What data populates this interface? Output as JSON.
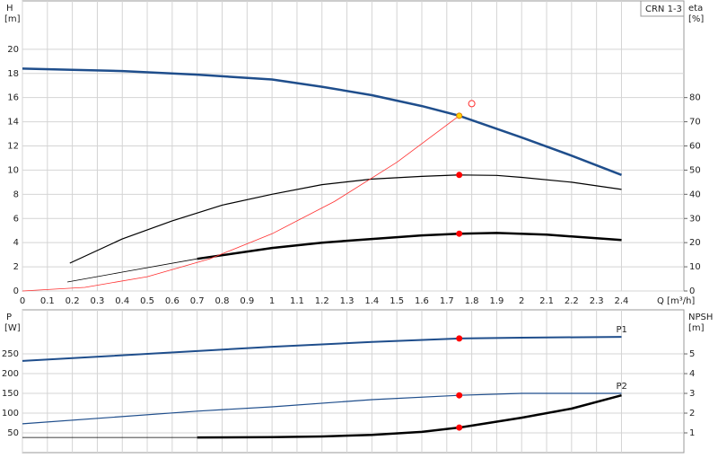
{
  "chart_data": [
    {
      "type": "line",
      "title": "CRN 1-3",
      "ylabel": "H",
      "ylabel_unit": "[m]",
      "y2label": "eta",
      "y2label_unit": "[%]",
      "xlabel": "Q [m³/h]",
      "xlim": [
        0,
        2.65
      ],
      "xticks": [
        0,
        0.1,
        0.2,
        0.3,
        0.4,
        0.5,
        0.6,
        0.7,
        0.8,
        0.9,
        1,
        1.1,
        1.2,
        1.3,
        1.4,
        1.5,
        1.6,
        1.7,
        1.8,
        1.9,
        2,
        2.1,
        2.2,
        2.3,
        2.4
      ],
      "ylim": [
        0,
        24
      ],
      "yticks": [
        0,
        2,
        4,
        6,
        8,
        10,
        12,
        14,
        16,
        18,
        20
      ],
      "y2lim": [
        0,
        120
      ],
      "y2ticks": [
        0,
        10,
        20,
        30,
        40,
        50,
        60,
        70,
        80
      ],
      "grid": true,
      "series": [
        {
          "style": "line",
          "color": "#1f4e8c",
          "width": 2.5,
          "x": [
            0,
            0.2,
            0.4,
            0.7,
            1.0,
            1.2,
            1.4,
            1.6,
            1.75,
            2.0,
            2.2,
            2.4
          ],
          "values": [
            18.4,
            18.3,
            18.2,
            17.9,
            17.5,
            16.9,
            16.2,
            15.3,
            14.5,
            12.7,
            11.2,
            9.6
          ]
        },
        {
          "style": "line",
          "axis": "y2",
          "color": "#000000",
          "width": 1.2,
          "x": [
            0.19,
            0.4,
            0.6,
            0.8,
            1.0,
            1.2,
            1.4,
            1.6,
            1.75,
            1.9,
            2.0,
            2.2,
            2.4
          ],
          "values": [
            11.5,
            21.5,
            29,
            35.5,
            40,
            44,
            46.3,
            47.4,
            48,
            47.8,
            47,
            45,
            42
          ]
        },
        {
          "style": "line",
          "axis": "y2",
          "color": "#000000",
          "width": 0.8,
          "x": [
            0.18,
            0.4,
            0.7
          ],
          "values": [
            3.7,
            7.8,
            13.3
          ]
        },
        {
          "style": "line",
          "axis": "y2",
          "color": "#000000",
          "width": 2.5,
          "x": [
            0.7,
            1.0,
            1.2,
            1.4,
            1.6,
            1.75,
            1.9,
            2.1,
            2.4
          ],
          "values": [
            13.3,
            17.8,
            20,
            21.5,
            23,
            23.7,
            24,
            23.3,
            21.1
          ]
        },
        {
          "style": "line",
          "color": "#ff3030",
          "width": 0.8,
          "x": [
            0,
            0.25,
            0.5,
            0.75,
            1.0,
            1.25,
            1.5,
            1.75
          ],
          "values": [
            0,
            0.3,
            1.18,
            2.66,
            4.73,
            7.4,
            10.65,
            14.5
          ]
        },
        {
          "style": "point",
          "color": "#ffd700",
          "edgecolor": "#e08000",
          "x": [
            1.75
          ],
          "values": [
            14.5
          ]
        },
        {
          "style": "point",
          "axis": "y2",
          "color": "#ff0000",
          "edgecolor": "#ff0000",
          "x": [
            1.75,
            1.75
          ],
          "values": [
            48,
            23.7
          ]
        },
        {
          "style": "point",
          "hollow": true,
          "edgecolor": "#ff3030",
          "x": [
            1.8
          ],
          "values": [
            15.5
          ]
        }
      ]
    },
    {
      "type": "line",
      "ylabel": "P",
      "ylabel_unit": "[W]",
      "y2label": "NPSH",
      "y2label_unit": "[m]",
      "xlim": [
        0,
        2.65
      ],
      "xticks": [
        0,
        0.1,
        0.2,
        0.3,
        0.4,
        0.5,
        0.6,
        0.7,
        0.8,
        0.9,
        1,
        1.1,
        1.2,
        1.3,
        1.4,
        1.5,
        1.6,
        1.7,
        1.8,
        1.9,
        2,
        2.1,
        2.2,
        2.3,
        2.4
      ],
      "ylim": [
        0,
        361.4
      ],
      "yticks": [
        50,
        100,
        150,
        200,
        250
      ],
      "y2lim": [
        0,
        7.23
      ],
      "y2ticks": [
        1,
        2,
        3,
        4,
        5
      ],
      "grid": true,
      "series": [
        {
          "style": "line",
          "name": "P1",
          "color": "#1f4e8c",
          "width": 2,
          "x": [
            0,
            0.7,
            1.0,
            1.4,
            1.75,
            2.0,
            2.4
          ],
          "values": [
            232,
            257,
            268,
            280,
            289,
            291,
            293
          ]
        },
        {
          "style": "line",
          "name": "P2",
          "color": "#1f4e8c",
          "width": 1.2,
          "x": [
            0,
            0.7,
            1.0,
            1.4,
            1.75,
            2.0,
            2.4
          ],
          "values": [
            73,
            105,
            116,
            134,
            145,
            150,
            150
          ]
        },
        {
          "style": "line",
          "axis": "y2",
          "color": "#000000",
          "width": 0.8,
          "x": [
            0,
            0.7
          ],
          "values": [
            0.77,
            0.77
          ]
        },
        {
          "style": "line",
          "axis": "y2",
          "color": "#000000",
          "width": 2.5,
          "x": [
            0.7,
            1.0,
            1.2,
            1.4,
            1.6,
            1.75,
            2.0,
            2.2,
            2.4
          ],
          "values": [
            0.77,
            0.78,
            0.82,
            0.9,
            1.05,
            1.27,
            1.77,
            2.23,
            2.9
          ]
        },
        {
          "style": "point",
          "color": "#ff0000",
          "edgecolor": "#ff0000",
          "x": [
            1.75,
            1.75
          ],
          "values": [
            289,
            145
          ]
        },
        {
          "style": "point",
          "axis": "y2",
          "color": "#ff0000",
          "edgecolor": "#ff0000",
          "x": [
            1.75
          ],
          "values": [
            1.27
          ]
        }
      ]
    }
  ]
}
